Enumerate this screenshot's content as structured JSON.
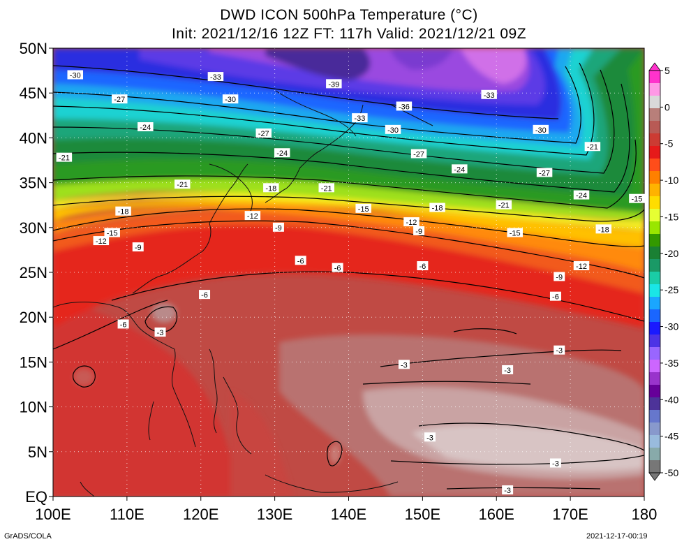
{
  "header": {
    "title": "DWD ICON 500hPa Temperature (°C)",
    "subtitle": "Init: 2021/12/16 12Z  FT: 117h  Valid: 2021/12/21 09Z"
  },
  "map": {
    "lon_labels": [
      "100E",
      "110E",
      "120E",
      "130E",
      "140E",
      "150E",
      "160E",
      "170E",
      "180"
    ],
    "lat_labels": [
      "EQ",
      "5N",
      "10N",
      "15N",
      "20N",
      "25N",
      "30N",
      "35N",
      "40N",
      "45N",
      "50N"
    ],
    "lon_range": [
      100,
      180
    ],
    "lat_range": [
      0,
      50
    ],
    "grid": true,
    "contour_labels": [
      {
        "text": "-30",
        "lon": 103,
        "lat": 47
      },
      {
        "text": "-33",
        "lon": 122,
        "lat": 46.8
      },
      {
        "text": "-39",
        "lon": 138,
        "lat": 46
      },
      {
        "text": "-33",
        "lon": 159,
        "lat": 44.8
      },
      {
        "text": "-27",
        "lon": 109,
        "lat": 44.3
      },
      {
        "text": "-30",
        "lon": 124,
        "lat": 44.3
      },
      {
        "text": "-36",
        "lon": 147.5,
        "lat": 43.5
      },
      {
        "text": "-24",
        "lon": 112.5,
        "lat": 41.2
      },
      {
        "text": "-33",
        "lon": 141.5,
        "lat": 42.2
      },
      {
        "text": "-30",
        "lon": 146,
        "lat": 40.9
      },
      {
        "text": "-30",
        "lon": 166,
        "lat": 40.9
      },
      {
        "text": "-27",
        "lon": 128.5,
        "lat": 40.5
      },
      {
        "text": "-21",
        "lon": 101.5,
        "lat": 37.8
      },
      {
        "text": "-24",
        "lon": 131,
        "lat": 38.3
      },
      {
        "text": "-27",
        "lon": 149.5,
        "lat": 38.2
      },
      {
        "text": "-21",
        "lon": 173,
        "lat": 39
      },
      {
        "text": "-24",
        "lon": 155,
        "lat": 36.5
      },
      {
        "text": "-27",
        "lon": 166.5,
        "lat": 36.1
      },
      {
        "text": "-21",
        "lon": 117.5,
        "lat": 34.8
      },
      {
        "text": "-18",
        "lon": 129.5,
        "lat": 34.4
      },
      {
        "text": "-21",
        "lon": 137,
        "lat": 34.4
      },
      {
        "text": "-24",
        "lon": 171.5,
        "lat": 33.6
      },
      {
        "text": "-15",
        "lon": 179,
        "lat": 33.2
      },
      {
        "text": "-18",
        "lon": 109.5,
        "lat": 31.8
      },
      {
        "text": "-15",
        "lon": 142,
        "lat": 32.1
      },
      {
        "text": "-18",
        "lon": 152,
        "lat": 32.2
      },
      {
        "text": "-21",
        "lon": 161,
        "lat": 32.5
      },
      {
        "text": "-12",
        "lon": 127,
        "lat": 31.3
      },
      {
        "text": "-12",
        "lon": 148.5,
        "lat": 30.6
      },
      {
        "text": "-9",
        "lon": 130.5,
        "lat": 30
      },
      {
        "text": "-9",
        "lon": 149.5,
        "lat": 29.6
      },
      {
        "text": "-15",
        "lon": 108,
        "lat": 29.4
      },
      {
        "text": "-15",
        "lon": 162.5,
        "lat": 29.4
      },
      {
        "text": "-18",
        "lon": 174.5,
        "lat": 29.8
      },
      {
        "text": "-12",
        "lon": 106.5,
        "lat": 28.5
      },
      {
        "text": "-9",
        "lon": 111.5,
        "lat": 27.8
      },
      {
        "text": "-6",
        "lon": 133.5,
        "lat": 26.3
      },
      {
        "text": "-6",
        "lon": 138.5,
        "lat": 25.5
      },
      {
        "text": "-6",
        "lon": 150,
        "lat": 25.7
      },
      {
        "text": "-12",
        "lon": 171.5,
        "lat": 25.7
      },
      {
        "text": "-9",
        "lon": 168.5,
        "lat": 24.5
      },
      {
        "text": "-6",
        "lon": 120.5,
        "lat": 22.5
      },
      {
        "text": "-6",
        "lon": 168,
        "lat": 22.3
      },
      {
        "text": "-6",
        "lon": 109.5,
        "lat": 19.2
      },
      {
        "text": "-3",
        "lon": 114.5,
        "lat": 18.3
      },
      {
        "text": "-3",
        "lon": 168.5,
        "lat": 16.3
      },
      {
        "text": "-3",
        "lon": 147.5,
        "lat": 14.7
      },
      {
        "text": "-3",
        "lon": 161.5,
        "lat": 14.1
      },
      {
        "text": "-3",
        "lon": 151,
        "lat": 6.6
      },
      {
        "text": "-3",
        "lon": 168,
        "lat": 3.7
      },
      {
        "text": "-3",
        "lon": 161.5,
        "lat": 0.7
      }
    ]
  },
  "colorbar": {
    "labels": [
      "5",
      "0",
      "-5",
      "-10",
      "-15",
      "-20",
      "-25",
      "-30",
      "-35",
      "-40",
      "-45",
      "-50"
    ],
    "values": [
      5,
      0,
      -5,
      -10,
      -15,
      -20,
      -25,
      -30,
      -35,
      -40,
      -45,
      -50
    ],
    "colors": [
      "#ff33cc",
      "#ff99e6",
      "#d9d9d9",
      "#b87f7a",
      "#b85a55",
      "#cc3b33",
      "#e61a1a",
      "#ff4d1a",
      "#ff8000",
      "#ffb300",
      "#ffdd00",
      "#e6ff33",
      "#99e600",
      "#339900",
      "#1a8033",
      "#1a9966",
      "#1acca6",
      "#1ae6e6",
      "#1aa6ff",
      "#1a66ff",
      "#1a1aff",
      "#4d33e6",
      "#9966ff",
      "#cc66ff",
      "#9933cc",
      "#660099",
      "#4d3399",
      "#6677cc",
      "#8899cc",
      "#99bbdd",
      "#88aaaa",
      "#777777"
    ]
  },
  "footer": {
    "left": "GrADS/COLA",
    "right": "2021-12-17-00:19"
  }
}
